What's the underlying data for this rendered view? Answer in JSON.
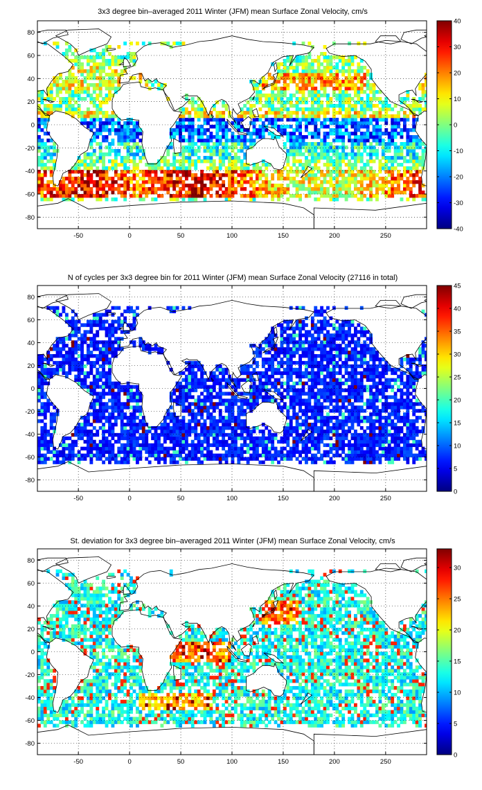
{
  "chart_data": [
    {
      "type": "heatmap",
      "title": "3x3 degree bin–averaged 2011 Winter (JFM) mean Surface Zonal Velocity, cm/s",
      "xlabel": "",
      "ylabel": "",
      "xlim": [
        -90,
        290
      ],
      "ylim": [
        -90,
        90
      ],
      "xticks": [
        "-50",
        "0",
        "50",
        "100",
        "150",
        "200",
        "250"
      ],
      "yticks": [
        "80",
        "60",
        "40",
        "20",
        "0",
        "-20",
        "-40",
        "-60",
        "-80"
      ],
      "colorbar": {
        "min": -40,
        "max": 40,
        "ticks": [
          "40",
          "30",
          "20",
          "10",
          "0",
          "-10",
          "-20",
          "-30",
          "-40"
        ]
      },
      "colormap": "jet",
      "bin_size_deg": 3,
      "grid": true,
      "field": "zonal_velocity"
    },
    {
      "type": "heatmap",
      "title": "N of cycles per 3x3 degree bin for 2011 Winter (JFM) mean Surface Zonal Velocity (27116 in total)",
      "xlabel": "",
      "ylabel": "",
      "xlim": [
        -90,
        290
      ],
      "ylim": [
        -90,
        90
      ],
      "xticks": [
        "-50",
        "0",
        "50",
        "100",
        "150",
        "200",
        "250"
      ],
      "yticks": [
        "80",
        "60",
        "40",
        "20",
        "0",
        "-20",
        "-40",
        "-60",
        "-80"
      ],
      "colorbar": {
        "min": 0,
        "max": 45,
        "ticks": [
          "45",
          "40",
          "35",
          "30",
          "25",
          "20",
          "15",
          "10",
          "5",
          "0"
        ]
      },
      "colormap": "jet",
      "bin_size_deg": 3,
      "grid": true,
      "field": "cycle_count"
    },
    {
      "type": "heatmap",
      "title": "St. deviation for 3x3 degree bin–averaged 2011 Winter (JFM) mean Surface Zonal Velocity, cm/s",
      "xlabel": "",
      "ylabel": "",
      "xlim": [
        -90,
        290
      ],
      "ylim": [
        -90,
        90
      ],
      "xticks": [
        "-50",
        "0",
        "50",
        "100",
        "150",
        "200",
        "250"
      ],
      "yticks": [
        "80",
        "60",
        "40",
        "20",
        "0",
        "-20",
        "-40",
        "-60",
        "-80"
      ],
      "colorbar": {
        "min": 0,
        "max": 33,
        "ticks": [
          "30",
          "25",
          "20",
          "15",
          "10",
          "5",
          "0"
        ]
      },
      "colormap": "jet",
      "bin_size_deg": 3,
      "grid": true,
      "field": "std_dev"
    }
  ]
}
